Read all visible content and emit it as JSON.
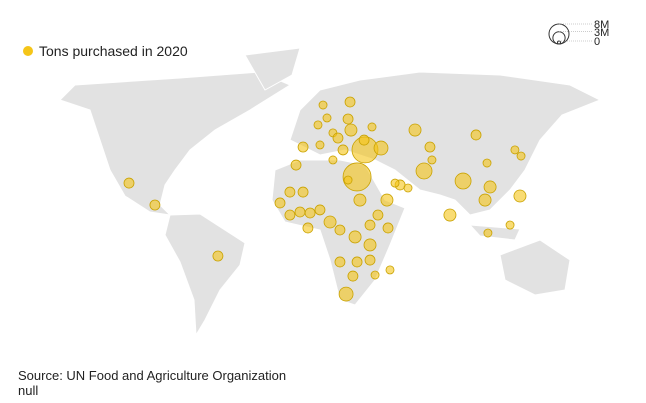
{
  "chart_data": {
    "type": "bubble_map",
    "legend": {
      "label": "Tons purchased in 2020",
      "color": "#f5c518"
    },
    "size_legend": {
      "ticks": [
        {
          "value": 8000000,
          "label": "8M"
        },
        {
          "value": 3000000,
          "label": "3M"
        },
        0
      ]
    },
    "points": [
      {
        "lon": -95.0,
        "lat": 22.9,
        "value": 2000000
      },
      {
        "lon": -80.6,
        "lat": 10.0,
        "value": 2000000
      },
      {
        "lon": -45.6,
        "lat": -20.0,
        "value": 2000000
      },
      {
        "lon": 31.7,
        "lat": 26.5,
        "value": 15700000
      },
      {
        "lon": 36.1,
        "lat": 42.4,
        "value": 13500000
      },
      {
        "lon": 45.0,
        "lat": 43.5,
        "value": 3900000
      },
      {
        "lon": 48.3,
        "lat": 12.9,
        "value": 2900000
      },
      {
        "lon": 68.9,
        "lat": 30.0,
        "value": 5100000
      },
      {
        "lon": 90.6,
        "lat": 24.1,
        "value": 5100000
      },
      {
        "lon": 83.3,
        "lat": 4.1,
        "value": 2900000
      },
      {
        "lon": 102.8,
        "lat": 12.9,
        "value": 2900000
      },
      {
        "lon": 105.6,
        "lat": 20.6,
        "value": 2900000
      },
      {
        "lon": 122.2,
        "lat": 15.3,
        "value": 2900000
      },
      {
        "lon": 116.7,
        "lat": -1.8,
        "value": 1300000
      },
      {
        "lon": 104.4,
        "lat": -6.5,
        "value": 1300000
      },
      {
        "lon": 103.9,
        "lat": 34.7,
        "value": 1300000
      },
      {
        "lon": 119.4,
        "lat": 42.4,
        "value": 1300000
      },
      {
        "lon": 122.8,
        "lat": 38.8,
        "value": 1300000
      },
      {
        "lon": 97.8,
        "lat": 51.2,
        "value": 2000000
      },
      {
        "lon": 63.9,
        "lat": 54.1,
        "value": 2900000
      },
      {
        "lon": 72.2,
        "lat": 44.1,
        "value": 2000000
      },
      {
        "lon": 73.3,
        "lat": 36.5,
        "value": 1300000
      },
      {
        "lon": 55.6,
        "lat": 21.8,
        "value": 2000000
      },
      {
        "lon": 60.0,
        "lat": 20.0,
        "value": 1300000
      },
      {
        "lon": 52.8,
        "lat": 22.9,
        "value": 1300000
      },
      {
        "lon": 15.0,
        "lat": 61.2,
        "value": 1300000
      },
      {
        "lon": 18.3,
        "lat": 52.4,
        "value": 1300000
      },
      {
        "lon": 27.8,
        "lat": 70.6,
        "value": 2000000
      },
      {
        "lon": 26.7,
        "lat": 60.6,
        "value": 2000000
      },
      {
        "lon": 23.9,
        "lat": 42.4,
        "value": 2000000
      },
      {
        "lon": 18.3,
        "lat": 36.5,
        "value": 1300000
      },
      {
        "lon": 11.1,
        "lat": 45.3,
        "value": 1300000
      },
      {
        "lon": 1.7,
        "lat": 44.1,
        "value": 2000000
      },
      {
        "lon": -2.2,
        "lat": 33.5,
        "value": 2000000
      },
      {
        "lon": -5.6,
        "lat": 17.6,
        "value": 2000000
      },
      {
        "lon": 1.7,
        "lat": 17.6,
        "value": 2000000
      },
      {
        "lon": -11.1,
        "lat": 11.2,
        "value": 2000000
      },
      {
        "lon": -5.6,
        "lat": 4.1,
        "value": 2000000
      },
      {
        "lon": 0,
        "lat": 5.9,
        "value": 2000000
      },
      {
        "lon": 5.6,
        "lat": 5.3,
        "value": 2000000
      },
      {
        "lon": 11.1,
        "lat": 7.1,
        "value": 2000000
      },
      {
        "lon": 16.7,
        "lat": 0,
        "value": 2900000
      },
      {
        "lon": 22.2,
        "lat": -4.7,
        "value": 2000000
      },
      {
        "lon": 30.6,
        "lat": -8.8,
        "value": 2900000
      },
      {
        "lon": 38.9,
        "lat": -1.8,
        "value": 2000000
      },
      {
        "lon": 43.3,
        "lat": 4.1,
        "value": 2000000
      },
      {
        "lon": 48.9,
        "lat": -3.5,
        "value": 2000000
      },
      {
        "lon": 33.3,
        "lat": 12.9,
        "value": 2900000
      },
      {
        "lon": 38.9,
        "lat": -13.5,
        "value": 2900000
      },
      {
        "lon": 31.7,
        "lat": -23.5,
        "value": 2000000
      },
      {
        "lon": 22.2,
        "lat": -23.5,
        "value": 2000000
      },
      {
        "lon": 38.9,
        "lat": -22.4,
        "value": 2000000
      },
      {
        "lon": 41.7,
        "lat": -31.2,
        "value": 1300000
      },
      {
        "lon": 50.0,
        "lat": -28.2,
        "value": 1300000
      },
      {
        "lon": 29.4,
        "lat": -31.8,
        "value": 2000000
      },
      {
        "lon": 25.6,
        "lat": -42.4,
        "value": 3900000
      },
      {
        "lon": 12.8,
        "lat": 68.8,
        "value": 1300000
      },
      {
        "lon": 10.0,
        "lat": 57.1,
        "value": 1300000
      },
      {
        "lon": 28.3,
        "lat": 54.1,
        "value": 2900000
      },
      {
        "lon": 35.6,
        "lat": 48.2,
        "value": 2000000
      },
      {
        "lon": 40.0,
        "lat": 55.9,
        "value": 1300000
      },
      {
        "lon": 21.1,
        "lat": 49.4,
        "value": 2000000
      },
      {
        "lon": 4.4,
        "lat": -3.5,
        "value": 2000000
      },
      {
        "lon": 26.7,
        "lat": 24.7,
        "value": 1300000
      }
    ],
    "source": "Source: UN Food and Agriculture Organization",
    "note": "null"
  }
}
